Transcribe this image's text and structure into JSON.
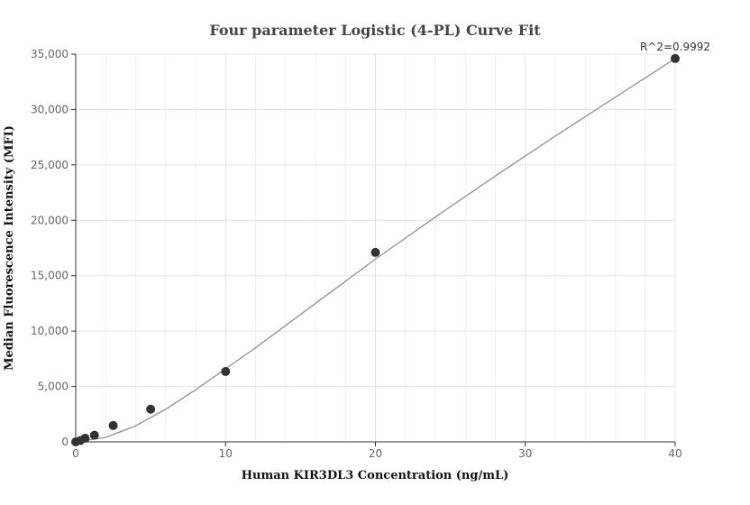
{
  "chart_data": {
    "type": "scatter",
    "title": "Four parameter Logistic (4-PL) Curve Fit",
    "xlabel": "Human KIR3DL3 Concentration (ng/mL)",
    "ylabel": "Median Fluorescence Intensity (MFI)",
    "xlim": [
      0,
      40
    ],
    "ylim": [
      0,
      35000
    ],
    "x_ticks": [
      0,
      10,
      20,
      30,
      40
    ],
    "x_tick_labels": [
      "0",
      "10",
      "20",
      "30",
      "40"
    ],
    "y_ticks": [
      0,
      5000,
      10000,
      15000,
      20000,
      25000,
      30000,
      35000
    ],
    "y_tick_labels": [
      "0",
      "5,000",
      "10,000",
      "15,000",
      "20,000",
      "25,000",
      "30,000",
      "35,000"
    ],
    "grid": true,
    "annotation": "R^2=0.9992",
    "series": [
      {
        "points": [
          {
            "x": 0,
            "y": 0
          },
          {
            "x": 0.3125,
            "y": 120
          },
          {
            "x": 0.625,
            "y": 330
          },
          {
            "x": 1.25,
            "y": 600
          },
          {
            "x": 2.5,
            "y": 1480
          },
          {
            "x": 5,
            "y": 2950
          },
          {
            "x": 10,
            "y": 6350
          },
          {
            "x": 20,
            "y": 17100
          },
          {
            "x": 40,
            "y": 34600
          }
        ],
        "color": "#333333"
      }
    ],
    "fit_curve": {
      "color": "#888888",
      "points": [
        {
          "x": 0,
          "y": 0
        },
        {
          "x": 2,
          "y": 400
        },
        {
          "x": 4,
          "y": 1450
        },
        {
          "x": 6,
          "y": 2950
        },
        {
          "x": 8,
          "y": 4700
        },
        {
          "x": 10,
          "y": 6600
        },
        {
          "x": 12,
          "y": 8500
        },
        {
          "x": 14,
          "y": 10500
        },
        {
          "x": 16,
          "y": 12500
        },
        {
          "x": 18,
          "y": 14500
        },
        {
          "x": 20,
          "y": 16500
        },
        {
          "x": 24,
          "y": 20300
        },
        {
          "x": 28,
          "y": 24000
        },
        {
          "x": 32,
          "y": 27600
        },
        {
          "x": 36,
          "y": 31100
        },
        {
          "x": 40,
          "y": 34600
        }
      ]
    }
  }
}
